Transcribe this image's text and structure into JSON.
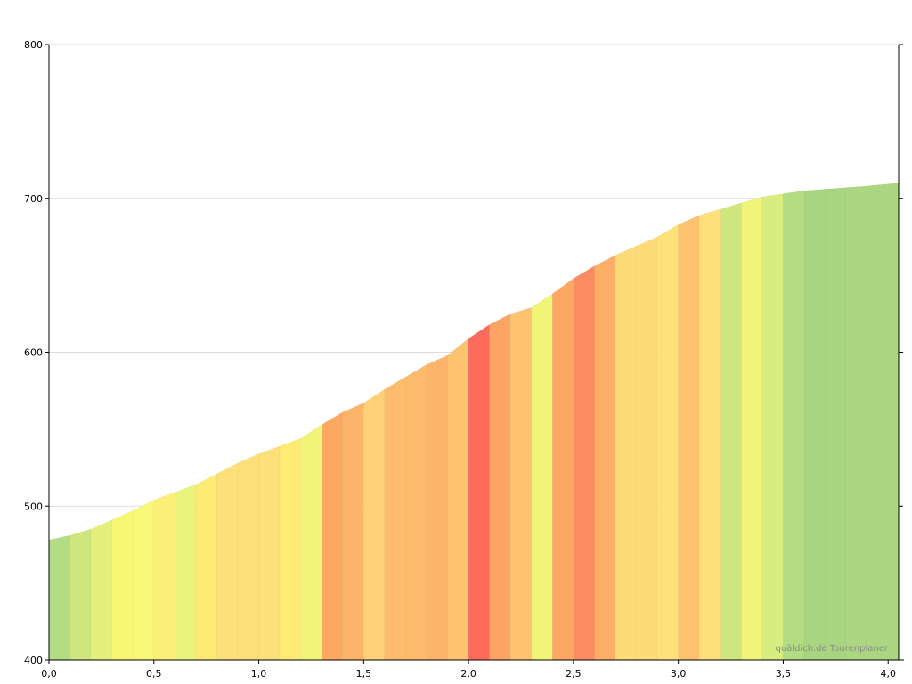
{
  "chart_data": {
    "type": "area",
    "title": "",
    "xlabel": "",
    "ylabel": "",
    "xlim": [
      0,
      4.05
    ],
    "ylim": [
      400,
      800
    ],
    "grid": true,
    "x_ticks": [
      0,
      0.5,
      1.0,
      1.5,
      2.0,
      2.5,
      3.0,
      3.5,
      4.0
    ],
    "x_tick_labels": [
      "0,0",
      "0,5",
      "1,0",
      "1,5",
      "2,0",
      "2,5",
      "3,0",
      "3,5",
      "4,0"
    ],
    "y_ticks": [
      400,
      500,
      600,
      700,
      800
    ],
    "y_tick_labels": [
      "400",
      "500",
      "600",
      "700",
      "800"
    ],
    "x": [
      0,
      0.1,
      0.2,
      0.3,
      0.4,
      0.5,
      0.6,
      0.7,
      0.8,
      0.9,
      1.0,
      1.1,
      1.2,
      1.3,
      1.4,
      1.5,
      1.6,
      1.7,
      1.8,
      1.9,
      2.0,
      2.1,
      2.2,
      2.3,
      2.4,
      2.5,
      2.6,
      2.7,
      2.8,
      2.9,
      3.0,
      3.1,
      3.2,
      3.3,
      3.4,
      3.5,
      3.6,
      3.7,
      3.8,
      3.9,
      4.05
    ],
    "elevation": [
      478,
      481,
      485,
      491,
      497,
      504,
      509,
      514,
      521,
      528,
      534,
      539,
      544,
      553,
      561,
      567,
      576,
      584,
      592,
      598,
      609,
      618,
      625,
      629,
      638,
      648,
      656,
      663,
      669,
      675,
      683,
      689,
      693,
      697,
      701,
      703,
      705,
      706,
      707,
      708,
      710
    ],
    "segment_colors": [
      "#b3dc83",
      "#cfe57d",
      "#e4f07c",
      "#f7f774",
      "#f9f777",
      "#fcef77",
      "#eaf37b",
      "#fdeb74",
      "#fee07a",
      "#fde07a",
      "#fde07a",
      "#fdeb74",
      "#f2f478",
      "#fca862",
      "#fcb46a",
      "#fdd176",
      "#fdbc6d",
      "#fdbc6d",
      "#fcb46a",
      "#fdc36f",
      "#fc6b5c",
      "#fca463",
      "#fdc36f",
      "#f2f478",
      "#fca862",
      "#fc8b62",
      "#fdae66",
      "#fddc77",
      "#fddc77",
      "#fde279",
      "#fdc26d",
      "#fde07a",
      "#cfe57d",
      "#f2f478",
      "#d9ec7f",
      "#b4dc82",
      "#a8d57f",
      "#a8d57f",
      "#acd681",
      "#acd681"
    ],
    "credit": "quäldich.de Tourenplaner"
  }
}
